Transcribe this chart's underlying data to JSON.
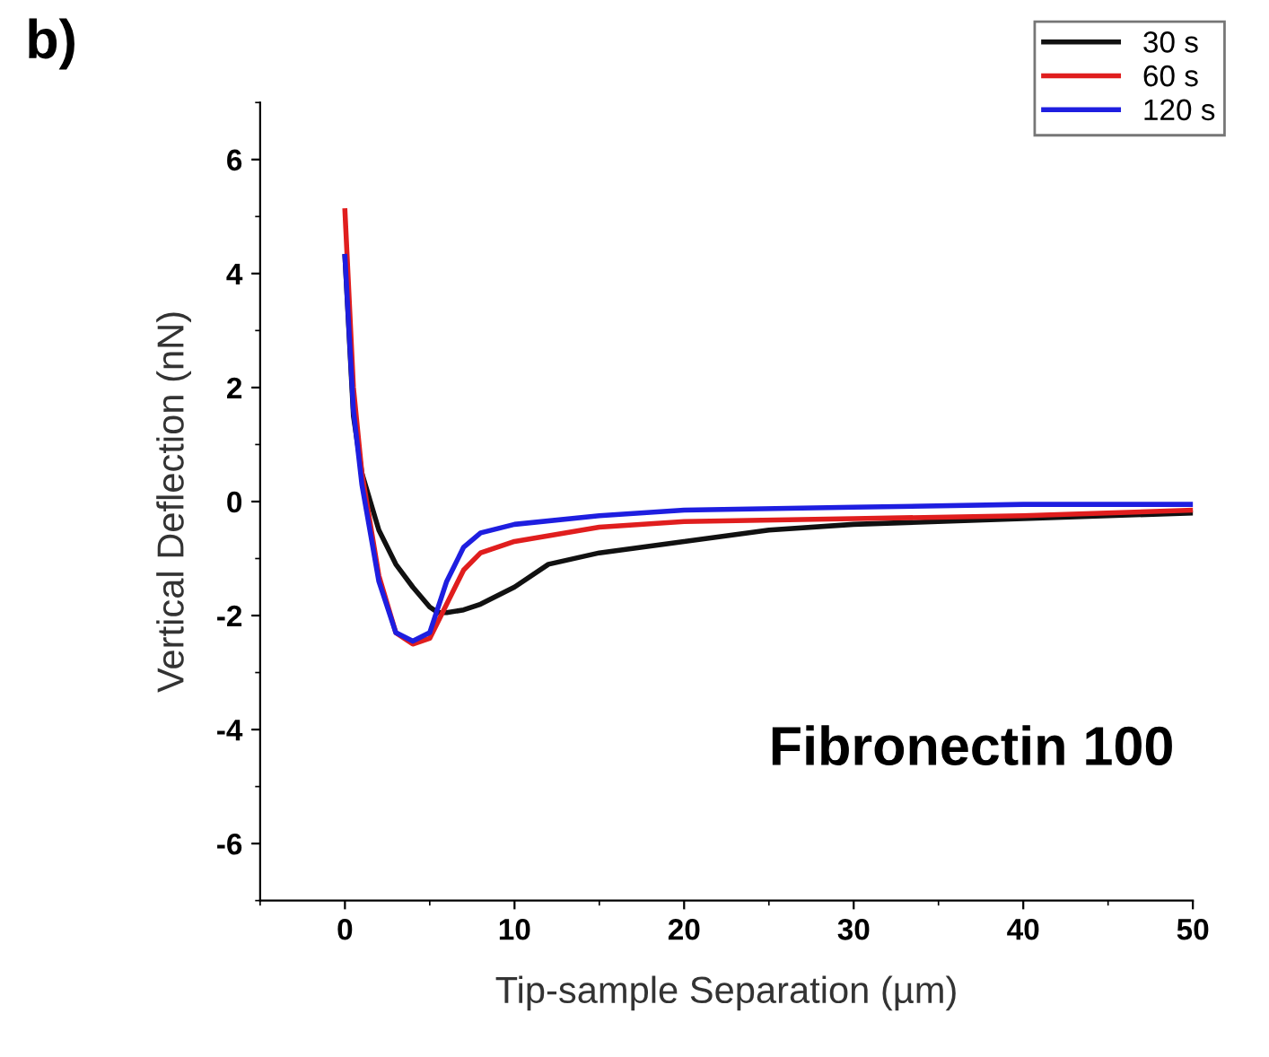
{
  "chart_data": {
    "type": "line",
    "xlabel": "Tip-sample Separation (µm)",
    "ylabel": "Vertical Deflection (nN)",
    "annotations": [
      "b)",
      "Fibronectin 100"
    ],
    "xlim": [
      -5,
      50
    ],
    "ylim": [
      -7,
      7
    ],
    "xticks": [
      0,
      10,
      20,
      30,
      40,
      50
    ],
    "yticks": [
      -6,
      -4,
      -2,
      0,
      2,
      4,
      6
    ],
    "grid": false,
    "legend": "top right",
    "series": [
      {
        "name": "30 s",
        "color": "#111111",
        "x": [
          0,
          0.5,
          1,
          2,
          3,
          4,
          5,
          5.5,
          6,
          7,
          8,
          10,
          12,
          15,
          20,
          25,
          30,
          40,
          50
        ],
        "values": [
          4.3,
          1.5,
          0.5,
          -0.5,
          -1.1,
          -1.5,
          -1.85,
          -1.95,
          -1.95,
          -1.9,
          -1.8,
          -1.5,
          -1.1,
          -0.9,
          -0.7,
          -0.5,
          -0.4,
          -0.3,
          -0.2
        ]
      },
      {
        "name": "60 s",
        "color": "#e01e1e",
        "x": [
          0,
          0.5,
          1,
          2,
          3,
          4,
          5,
          6,
          7,
          8,
          10,
          15,
          20,
          30,
          40,
          50
        ],
        "values": [
          5.1,
          2.0,
          0.5,
          -1.3,
          -2.3,
          -2.5,
          -2.4,
          -1.8,
          -1.2,
          -0.9,
          -0.7,
          -0.45,
          -0.35,
          -0.3,
          -0.25,
          -0.15
        ]
      },
      {
        "name": "120 s",
        "color": "#1e1ee0",
        "x": [
          0,
          0.5,
          1,
          2,
          3,
          4,
          5,
          6,
          7,
          8,
          10,
          15,
          20,
          30,
          40,
          50
        ],
        "values": [
          4.3,
          1.6,
          0.3,
          -1.4,
          -2.3,
          -2.45,
          -2.3,
          -1.4,
          -0.8,
          -0.55,
          -0.4,
          -0.25,
          -0.15,
          -0.1,
          -0.05,
          -0.05
        ]
      }
    ]
  }
}
